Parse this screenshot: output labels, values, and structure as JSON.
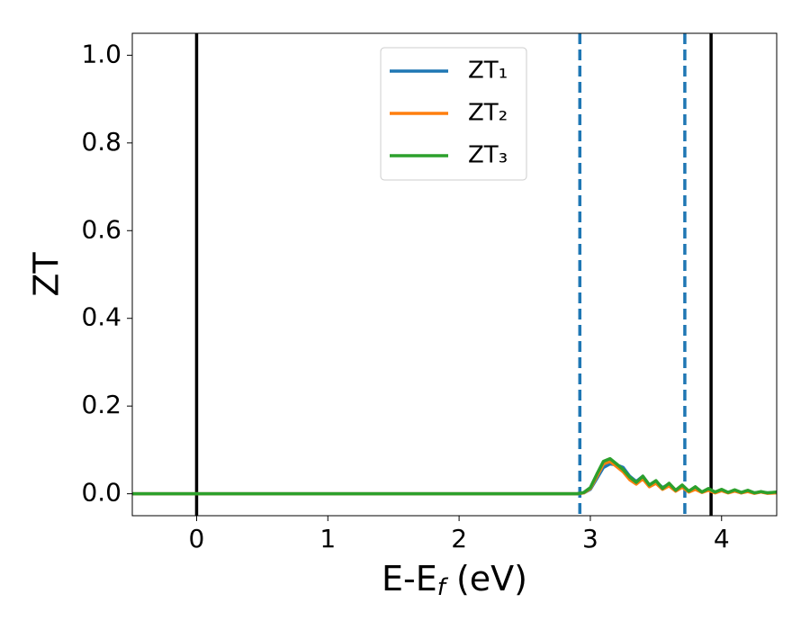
{
  "chart_data": {
    "type": "line",
    "xlabel_parts": [
      "E-E",
      "f",
      " (eV)"
    ],
    "ylabel": "ZT",
    "x": [
      -0.49,
      0,
      1,
      2,
      2.9,
      2.95,
      3.0,
      3.05,
      3.1,
      3.15,
      3.2,
      3.25,
      3.3,
      3.35,
      3.4,
      3.45,
      3.5,
      3.55,
      3.6,
      3.65,
      3.7,
      3.75,
      3.8,
      3.85,
      3.9,
      3.95,
      4.0,
      4.05,
      4.1,
      4.15,
      4.2,
      4.25,
      4.3,
      4.35,
      4.42
    ],
    "series": [
      {
        "name": "ZT₁",
        "color": "#1f77b4",
        "values": [
          0,
          0,
          0,
          0,
          0,
          0.002,
          0.01,
          0.035,
          0.06,
          0.068,
          0.066,
          0.06,
          0.04,
          0.028,
          0.04,
          0.02,
          0.028,
          0.014,
          0.022,
          0.008,
          0.018,
          0.006,
          0.012,
          0.004,
          0.01,
          0.003,
          0.008,
          0.003,
          0.007,
          0.002,
          0.006,
          0.002,
          0.004,
          0.002,
          0.003
        ]
      },
      {
        "name": "ZT₂",
        "color": "#ff7f0e",
        "values": [
          0,
          0,
          0,
          0,
          0,
          0.002,
          0.012,
          0.04,
          0.068,
          0.074,
          0.062,
          0.05,
          0.032,
          0.022,
          0.034,
          0.016,
          0.024,
          0.01,
          0.018,
          0.006,
          0.015,
          0.004,
          0.01,
          0.003,
          0.008,
          0.002,
          0.007,
          0.002,
          0.006,
          0.002,
          0.005,
          0.001,
          0.004,
          0.001,
          0.002
        ]
      },
      {
        "name": "ZT₃",
        "color": "#2ca02c",
        "values": [
          0,
          0,
          0,
          0,
          0,
          0.003,
          0.014,
          0.045,
          0.074,
          0.08,
          0.068,
          0.055,
          0.038,
          0.026,
          0.04,
          0.02,
          0.03,
          0.012,
          0.024,
          0.008,
          0.02,
          0.006,
          0.016,
          0.004,
          0.012,
          0.004,
          0.01,
          0.003,
          0.009,
          0.003,
          0.008,
          0.002,
          0.005,
          0.002,
          0.004
        ]
      }
    ],
    "vlines": [
      {
        "x": 0,
        "color": "#000000",
        "dashed": false
      },
      {
        "x": 3.92,
        "color": "#000000",
        "dashed": false
      },
      {
        "x": 2.92,
        "color": "#1f77b4",
        "dashed": true
      },
      {
        "x": 3.72,
        "color": "#1f77b4",
        "dashed": true
      }
    ],
    "xlim": [
      -0.49,
      4.42
    ],
    "xticks": [
      0,
      1,
      2,
      3,
      4
    ],
    "ylim": [
      -0.05,
      1.05
    ],
    "yticks": [
      {
        "value": 0,
        "label": "0.0"
      },
      {
        "value": 0.2,
        "label": "0.2"
      },
      {
        "value": 0.4,
        "label": "0.4"
      },
      {
        "value": 0.6,
        "label": "0.6"
      },
      {
        "value": 0.8,
        "label": "0.8"
      },
      {
        "value": 1,
        "label": "1.0"
      }
    ],
    "legend": "upper center",
    "grid": false
  }
}
